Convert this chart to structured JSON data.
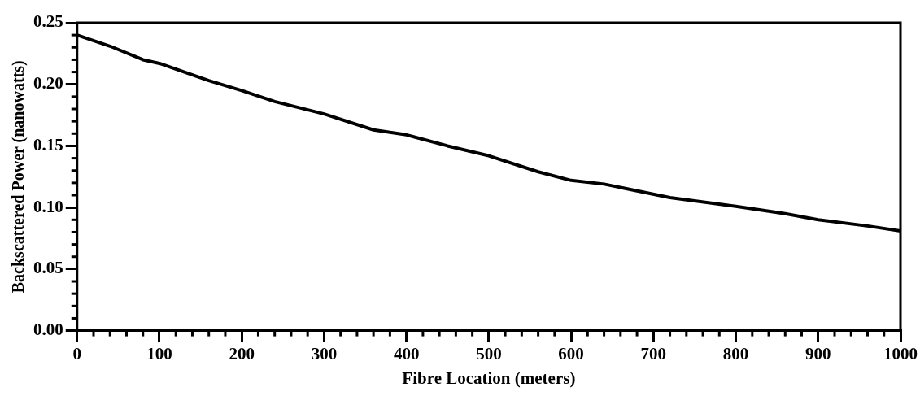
{
  "chart_data": {
    "type": "line",
    "xlabel": "Fibre Location (meters)",
    "ylabel": "Backscattered Power (nanowatts)",
    "x": [
      0,
      40,
      80,
      100,
      160,
      200,
      240,
      300,
      360,
      400,
      450,
      500,
      560,
      600,
      640,
      720,
      800,
      860,
      900,
      960,
      1000
    ],
    "series": [
      {
        "color": "#000000",
        "values": [
          0.24,
          0.231,
          0.22,
          0.217,
          0.203,
          0.195,
          0.186,
          0.176,
          0.163,
          0.159,
          0.15,
          0.142,
          0.129,
          0.122,
          0.119,
          0.108,
          0.101,
          0.095,
          0.09,
          0.085,
          0.081
        ]
      }
    ],
    "xlim": [
      0,
      1000
    ],
    "xticks": [
      0,
      100,
      200,
      300,
      400,
      500,
      600,
      700,
      800,
      900,
      1000
    ],
    "ylim": [
      0,
      0.25
    ],
    "yticks": [
      {
        "value": 0,
        "label": "0.00"
      },
      {
        "value": 0.05,
        "label": "0.05"
      },
      {
        "value": 0.1,
        "label": "0.10"
      },
      {
        "value": 0.15,
        "label": "0.15"
      },
      {
        "value": 0.2,
        "label": "0.20"
      },
      {
        "value": 0.25,
        "label": "0.25"
      }
    ],
    "grid": false,
    "legend": false,
    "marker": "none",
    "line_style": "solid"
  }
}
